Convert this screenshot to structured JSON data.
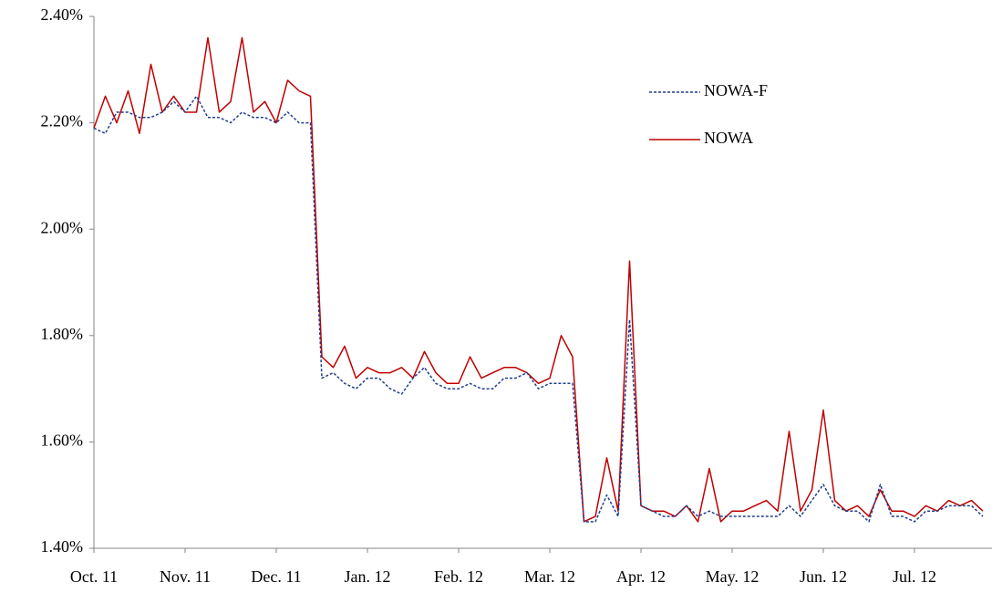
{
  "chart_data": {
    "type": "line",
    "categories": [
      "Oct. 11",
      null,
      null,
      null,
      null,
      null,
      null,
      null,
      "Nov. 11",
      null,
      null,
      null,
      null,
      null,
      null,
      null,
      "Dec. 11",
      null,
      null,
      null,
      null,
      null,
      null,
      null,
      "Jan. 12",
      null,
      null,
      null,
      null,
      null,
      null,
      null,
      "Feb. 12",
      null,
      null,
      null,
      null,
      null,
      null,
      null,
      "Mar. 12",
      null,
      null,
      null,
      null,
      null,
      null,
      null,
      "Apr. 12",
      null,
      null,
      null,
      null,
      null,
      null,
      null,
      "May. 12",
      null,
      null,
      null,
      null,
      null,
      null,
      null,
      "Jun. 12",
      null,
      null,
      null,
      null,
      null,
      null,
      null,
      "Jul. 12",
      null,
      null,
      null,
      null,
      null,
      null
    ],
    "series": [
      {
        "name": "NOWA",
        "color": "#c00000",
        "line_style": "solid",
        "values": [
          2.19,
          2.25,
          2.2,
          2.26,
          2.18,
          2.31,
          2.22,
          2.25,
          2.22,
          2.22,
          2.36,
          2.22,
          2.24,
          2.36,
          2.22,
          2.24,
          2.2,
          2.28,
          2.26,
          2.25,
          1.76,
          1.74,
          1.78,
          1.72,
          1.74,
          1.73,
          1.73,
          1.74,
          1.72,
          1.77,
          1.73,
          1.71,
          1.71,
          1.76,
          1.72,
          1.73,
          1.74,
          1.74,
          1.73,
          1.71,
          1.72,
          1.8,
          1.76,
          1.45,
          1.46,
          1.57,
          1.47,
          1.94,
          1.48,
          1.47,
          1.47,
          1.46,
          1.48,
          1.45,
          1.55,
          1.45,
          1.47,
          1.47,
          1.48,
          1.49,
          1.47,
          1.62,
          1.47,
          1.51,
          1.66,
          1.49,
          1.47,
          1.48,
          1.46,
          1.51,
          1.47,
          1.47,
          1.46,
          1.48,
          1.47,
          1.49,
          1.48,
          1.49,
          1.47
        ]
      },
      {
        "name": "NOWA-F",
        "color": "#1f3f8f",
        "line_style": "dashed",
        "values": [
          2.19,
          2.18,
          2.22,
          2.22,
          2.21,
          2.21,
          2.22,
          2.24,
          2.22,
          2.25,
          2.21,
          2.21,
          2.2,
          2.22,
          2.21,
          2.21,
          2.2,
          2.22,
          2.2,
          2.2,
          1.72,
          1.73,
          1.71,
          1.7,
          1.72,
          1.72,
          1.7,
          1.69,
          1.72,
          1.74,
          1.71,
          1.7,
          1.7,
          1.71,
          1.7,
          1.7,
          1.72,
          1.72,
          1.73,
          1.7,
          1.71,
          1.71,
          1.71,
          1.45,
          1.45,
          1.5,
          1.46,
          1.83,
          1.48,
          1.47,
          1.46,
          1.46,
          1.48,
          1.46,
          1.47,
          1.46,
          1.46,
          1.46,
          1.46,
          1.46,
          1.46,
          1.48,
          1.46,
          1.49,
          1.52,
          1.48,
          1.47,
          1.47,
          1.45,
          1.52,
          1.46,
          1.46,
          1.45,
          1.47,
          1.47,
          1.48,
          1.48,
          1.48,
          1.46
        ]
      }
    ],
    "legend_order": [
      1,
      0
    ],
    "legend": "upper right",
    "ylim": [
      1.4,
      2.4
    ],
    "yticks": [
      {
        "value": 1.4,
        "label": "1.40%"
      },
      {
        "value": 1.6,
        "label": "1.60%"
      },
      {
        "value": 1.8,
        "label": "1.80%"
      },
      {
        "value": 2.0,
        "label": "2.00%"
      },
      {
        "value": 2.2,
        "label": "2.20%"
      },
      {
        "value": 2.4,
        "label": "2.40%"
      }
    ],
    "grid": false
  }
}
